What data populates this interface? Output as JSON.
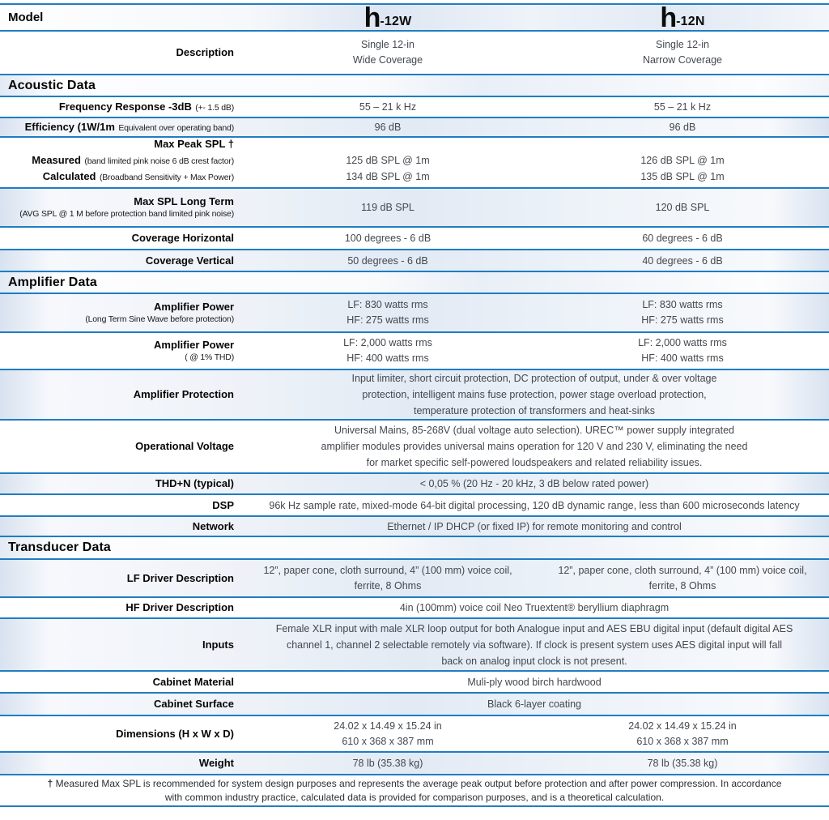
{
  "colors": {
    "rule_blue": "#1f7dc2",
    "row_tint": "#dfe8f3",
    "value_text": "#43484e",
    "label_text": "#060606"
  },
  "header": {
    "model_label": "Model",
    "col1": {
      "logo": "h",
      "suffix": "-12W"
    },
    "col2": {
      "logo": "h",
      "suffix": "-12N"
    }
  },
  "sections": {
    "acoustic": "Acoustic Data",
    "amplifier": "Amplifier Data",
    "transducer": "Transducer Data"
  },
  "rows": {
    "description": {
      "label": "Description",
      "col1": {
        "l1": "Single 12-in",
        "l2": "Wide Coverage"
      },
      "col2": {
        "l1": "Single 12-in",
        "l2": "Narrow Coverage"
      }
    },
    "frequency": {
      "label": "Frequency Response -3dB",
      "label_sub": "(+- 1.5 dB)",
      "col1": "55 – 21 k Hz",
      "col2": "55 – 21 k Hz"
    },
    "efficiency": {
      "label": "Efficiency (1W/1m",
      "label_sub": "Equivalent over operating band)",
      "col1": "96 dB",
      "col2": "96 dB"
    },
    "max_peak": {
      "label": "Max Peak SPL †",
      "sub1_bold": "Measured",
      "sub1": "(band limited pink noise 6 dB crest factor)",
      "sub2_bold": "Calculated",
      "sub2": "(Broadband Sensitivity + Max Power)",
      "col1": {
        "l1": "125 dB SPL @ 1m",
        "l2": "134 dB SPL @ 1m"
      },
      "col2": {
        "l1": "126 dB SPL @ 1m",
        "l2": "135 dB SPL @ 1m"
      }
    },
    "long_term": {
      "label": "Max SPL Long Term",
      "label_sub": "(AVG SPL @ 1 M before protection band limited pink noise)",
      "col1": "119 dB SPL",
      "col2": "120 dB SPL"
    },
    "coverage_h": {
      "label": "Coverage Horizontal",
      "col1": "100 degrees - 6 dB",
      "col2": "60 degrees - 6 dB"
    },
    "coverage_v": {
      "label": "Coverage Vertical",
      "col1": "50 degrees - 6 dB",
      "col2": "40 degrees - 6 dB"
    },
    "amp_power_lt": {
      "label": "Amplifier Power",
      "label_sub": "(Long Term Sine Wave before protection)",
      "col1": {
        "l1": "LF: 830 watts rms",
        "l2": "HF: 275 watts rms"
      },
      "col2": {
        "l1": "LF: 830 watts rms",
        "l2": "HF: 275 watts rms"
      }
    },
    "amp_power_thd": {
      "label": "Amplifier Power",
      "label_sub": "( @ 1% THD)",
      "col1": {
        "l1": "LF: 2,000 watts rms",
        "l2": "HF: 400 watts rms"
      },
      "col2": {
        "l1": "LF: 2,000 watts rms",
        "l2": "HF: 400 watts rms"
      }
    },
    "amp_protection": {
      "label": "Amplifier Protection",
      "span": {
        "l1": "Input limiter, short circuit protection, DC protection of output, under & over voltage",
        "l2": "protection, intelligent mains fuse protection, power stage overload protection,",
        "l3": "temperature protection of transformers and heat-sinks"
      }
    },
    "op_voltage": {
      "label": "Operational Voltage",
      "span": {
        "l1": "Universal Mains, 85-268V (dual voltage auto selection). UREC™ power supply integrated",
        "l2": "amplifier modules provides universal mains operation for 120 V and 230 V, eliminating the need",
        "l3": "for market specific self-powered loudspeakers and related reliability issues."
      }
    },
    "thd_n": {
      "label": "THD+N (typical)",
      "span": "< 0,05 % (20 Hz - 20 kHz, 3 dB below rated power)"
    },
    "dsp": {
      "label": "DSP",
      "span": "96k Hz sample rate, mixed-mode 64-bit digital processing, 120 dB dynamic range, less than 600 microseconds latency"
    },
    "network": {
      "label": "Network",
      "span": "Ethernet / IP DHCP (or fixed IP) for remote monitoring and control"
    },
    "lf_driver": {
      "label": "LF Driver Description",
      "col1": {
        "l1": "12”, paper cone, cloth surround, 4” (100 mm) voice coil,",
        "l2": "ferrite, 8 Ohms"
      },
      "col2": {
        "l1": "12”, paper cone, cloth surround, 4” (100 mm) voice coil,",
        "l2": "ferrite, 8 Ohms"
      }
    },
    "hf_driver": {
      "label": "HF Driver Description",
      "span": "4in (100mm) voice coil Neo Truextent® beryllium diaphragm"
    },
    "inputs": {
      "label": "Inputs",
      "span": {
        "l1": "Female XLR input with male XLR loop output for both Analogue input and AES EBU digital input (default digital AES",
        "l2": "channel 1, channel 2 selectable remotely via software). If clock is present system uses AES digital input will fall",
        "l3": "back on analog input clock is not present."
      }
    },
    "cab_material": {
      "label": "Cabinet Material",
      "span": "Muli-ply wood birch hardwood"
    },
    "cab_surface": {
      "label": "Cabinet Surface",
      "span": "Black 6-layer coating"
    },
    "dimensions": {
      "label": "Dimensions (H x W x D)",
      "col1": {
        "l1": "24.02 x 14.49 x 15.24 in",
        "l2": "610 x 368 x 387 mm"
      },
      "col2": {
        "l1": "24.02 x 14.49 x 15.24 in",
        "l2": "610 x 368 x 387 mm"
      }
    },
    "weight": {
      "label": "Weight",
      "col1": "78 lb (35.38 kg)",
      "col2": "78 lb (35.38 kg)"
    }
  },
  "footnote": {
    "dagger": "†",
    "line1": "Measured Max SPL is recommended for system design purposes and represents the average peak output before protection and after power compression. In accordance",
    "line2": "with common industry practice, calculated data is provided for comparison purposes, and is a theoretical calculation."
  }
}
